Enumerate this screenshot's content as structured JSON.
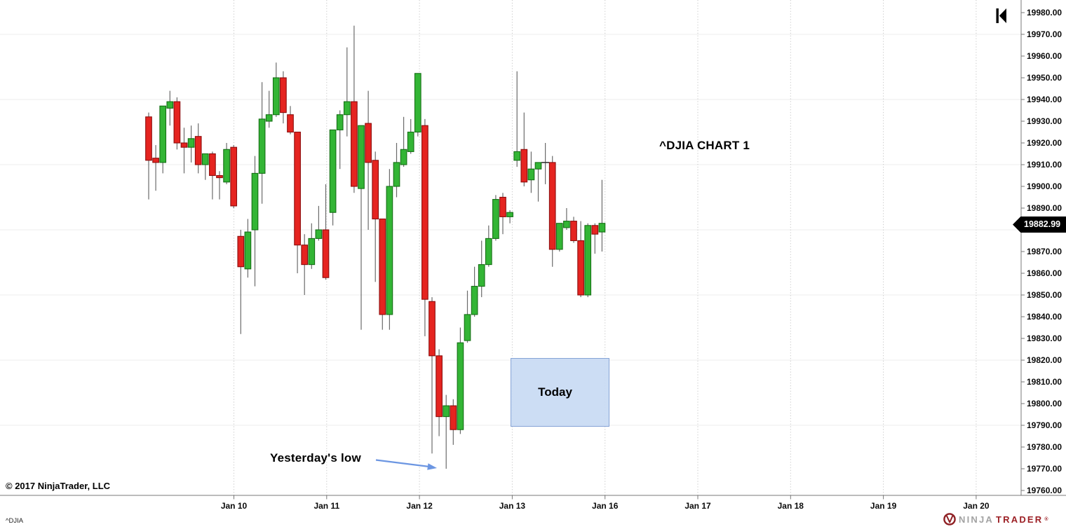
{
  "chart_data": {
    "type": "candlestick",
    "title": "^DJIA CHART 1",
    "symbol": "^DJIA",
    "last_price_label": "19882.99",
    "y_axis": {
      "min": 19760,
      "max": 19980,
      "step": 10,
      "tick_labels": [
        "19980.00",
        "19970.00",
        "19960.00",
        "19950.00",
        "19940.00",
        "19930.00",
        "19920.00",
        "19910.00",
        "19900.00",
        "19890.00",
        "19880.00",
        "19870.00",
        "19860.00",
        "19850.00",
        "19840.00",
        "19830.00",
        "19820.00",
        "19810.00",
        "19800.00",
        "19790.00",
        "19780.00",
        "19770.00",
        "19760.00"
      ]
    },
    "x_axis": {
      "tick_labels": [
        "Jan 10",
        "Jan 11",
        "Jan 12",
        "Jan 13",
        "Jan 16",
        "Jan 17",
        "Jan 18",
        "Jan 19",
        "Jan 20"
      ]
    },
    "grid": {
      "horizontal_lines_at": [
        19970,
        19940,
        19910,
        19880,
        19850,
        19820,
        19790
      ],
      "vertical_dotted": true
    },
    "candles": [
      [
        19932,
        19934,
        19894,
        19912
      ],
      [
        19913,
        19919,
        19898,
        19911
      ],
      [
        19911,
        19937,
        19906,
        19937
      ],
      [
        19936,
        19944,
        19928,
        19939
      ],
      [
        19939,
        19941,
        19917,
        19920
      ],
      [
        19920,
        19927,
        19906,
        19918
      ],
      [
        19918,
        19928,
        19911,
        19922
      ],
      [
        19923,
        19929,
        19906,
        19910
      ],
      [
        19910,
        19915,
        19903,
        19915
      ],
      [
        19915,
        19916,
        19894,
        19905
      ],
      [
        19905,
        19907,
        19894,
        19904
      ],
      [
        19902,
        19920,
        19901,
        19917
      ],
      [
        19918,
        19919,
        19890,
        19891
      ],
      [
        19877,
        19880,
        19832,
        19863
      ],
      [
        19862,
        19885,
        19858,
        19879
      ],
      [
        19880,
        19914,
        19854,
        19906
      ],
      [
        19906,
        19948,
        19892,
        19931
      ],
      [
        19930,
        19944,
        19927,
        19933
      ],
      [
        19933,
        19957,
        19932,
        19950
      ],
      [
        19950,
        19953,
        19929,
        19934
      ],
      [
        19933,
        19937,
        19924,
        19925
      ],
      [
        19925,
        19925,
        19860,
        19873
      ],
      [
        19873,
        19878,
        19850,
        19864
      ],
      [
        19864,
        19883,
        19862,
        19876
      ],
      [
        19876,
        19891,
        19875,
        19880
      ],
      [
        19880,
        19901,
        19857,
        19858
      ],
      [
        19888,
        19926,
        19882,
        19926
      ],
      [
        19926,
        19935,
        19908,
        19933
      ],
      [
        19933,
        19964,
        19923,
        19939
      ],
      [
        19939,
        19974,
        19897,
        19900
      ],
      [
        19899,
        19928,
        19834,
        19928
      ],
      [
        19929,
        19944,
        19880,
        19911
      ],
      [
        19912,
        19916,
        19856,
        19885
      ],
      [
        19885,
        19885,
        19834,
        19841
      ],
      [
        19841,
        19908,
        19834,
        19900
      ],
      [
        19900,
        19920,
        19895,
        19911
      ],
      [
        19910,
        19932,
        19909,
        19917
      ],
      [
        19916,
        19931,
        19915,
        19925
      ],
      [
        19925,
        19952,
        19923,
        19952
      ],
      [
        19928,
        19931,
        19831,
        19848
      ],
      [
        19847,
        19849,
        19777,
        19822
      ],
      [
        19822,
        19825,
        19785,
        19794
      ],
      [
        19794,
        19804,
        19770,
        19799
      ],
      [
        19799,
        19802,
        19781,
        19788
      ],
      [
        19788,
        19835,
        19786,
        19828
      ],
      [
        19829,
        19852,
        19828,
        19841
      ],
      [
        19841,
        19863,
        19840,
        19854
      ],
      [
        19854,
        19875,
        19849,
        19864
      ],
      [
        19864,
        19882,
        19863,
        19876
      ],
      [
        19876,
        19896,
        19875,
        19894
      ],
      [
        19895,
        19897,
        19878,
        19886
      ],
      [
        19886,
        19889,
        19883,
        19888
      ],
      [
        19912,
        19953,
        19909,
        19916
      ],
      [
        19917,
        19934,
        19900,
        19902
      ],
      [
        19903,
        19916,
        19897,
        19908
      ],
      [
        19908,
        19911,
        19893,
        19911
      ],
      [
        19911,
        19920,
        19901,
        19911
      ],
      [
        19911,
        19914,
        19863,
        19871
      ],
      [
        19871,
        19883,
        19870,
        19883
      ],
      [
        19881,
        19890,
        19880,
        19884
      ],
      [
        19884,
        19886,
        19874,
        19875
      ],
      [
        19875,
        19884,
        19849,
        19850
      ],
      [
        19850,
        19883,
        19849,
        19882
      ],
      [
        19882,
        19883,
        19869,
        19878
      ],
      [
        19879,
        19903,
        19870,
        19883
      ]
    ],
    "colors": {
      "up_fill": "#33b535",
      "up_border": "#156f15",
      "down_fill": "#e52420",
      "down_border": "#8d0d0d",
      "wick": "#6b6b6b",
      "doji": "#333333",
      "grid_h": "#ececec",
      "grid_v": "#c9c9c9",
      "axis": "#787878",
      "badge_bg": "#000000",
      "badge_text": "#ffffff"
    },
    "annotations": {
      "today_box": {
        "label": "Today",
        "price_top": 19821,
        "price_bottom": 19789.5,
        "fill": "#c8daf3",
        "border": "#85a3d6"
      },
      "yesterdays_low": {
        "label": "Yesterday's low",
        "target_price": 19770,
        "arrow_color": "#6c96e2"
      }
    }
  },
  "footer": {
    "copyright": "© 2017 NinjaTrader, LLC",
    "symbol_tab": "^DJIA"
  },
  "branding": {
    "name_gray": "NINJA",
    "name_red": "TRADER",
    "reg_mark": "®"
  }
}
